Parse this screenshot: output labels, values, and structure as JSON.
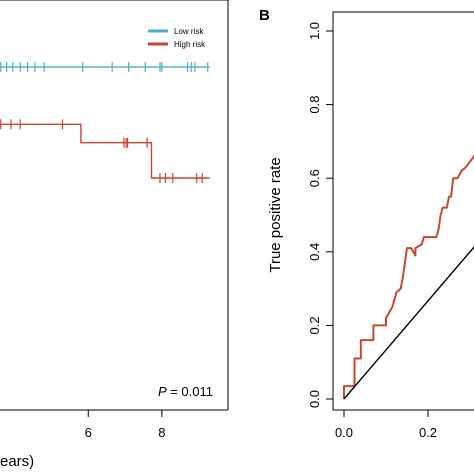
{
  "chart_data": [
    {
      "type": "line",
      "panel_label": "",
      "xlabel": "ears)",
      "ylabel": "",
      "x_ticks": [
        "6",
        "8"
      ],
      "x_tick_values": [
        6,
        8
      ],
      "xlim": [
        3.6,
        9.8
      ],
      "ylim": [
        0,
        1.0
      ],
      "grid": false,
      "legend": {
        "position": "top-right",
        "entries": [
          "Low risk",
          "High risk"
        ]
      },
      "annotation": {
        "prefix": "P",
        "text": " = 0.011"
      },
      "colors": {
        "low": "#4bb0c7",
        "high": "#c8452e"
      },
      "series": [
        {
          "name": "Low risk",
          "steps": [
            [
              3.6,
              0.857
            ],
            [
              9.3,
              0.857
            ]
          ],
          "censor_x": [
            3.62,
            3.78,
            3.95,
            4.15,
            4.35,
            4.55,
            4.8,
            5.85,
            6.65,
            7.1,
            7.55,
            7.95,
            8.0,
            8.7,
            8.8,
            8.9,
            9.25
          ]
        },
        {
          "name": "High risk",
          "steps": [
            [
              3.6,
              0.711
            ],
            [
              5.8,
              0.711
            ],
            [
              5.8,
              0.664
            ],
            [
              7.72,
              0.664
            ],
            [
              7.72,
              0.574
            ],
            [
              9.3,
              0.574
            ]
          ],
          "censor_x": [
            3.62,
            3.9,
            4.15,
            5.3,
            6.97,
            7.03,
            7.07,
            7.6,
            7.95,
            8.1,
            8.3,
            8.95,
            9.1
          ]
        }
      ]
    },
    {
      "type": "line",
      "panel_label": "B",
      "xlabel": "",
      "ylabel": "True positive rate",
      "x_ticks": [
        "0.0",
        "0.2"
      ],
      "x_tick_values": [
        0.0,
        0.2
      ],
      "y_ticks": [
        "0.0",
        "0.2",
        "0.4",
        "0.6",
        "0.8",
        "1.0"
      ],
      "y_tick_values": [
        0.0,
        0.2,
        0.4,
        0.6,
        0.8,
        1.0
      ],
      "xlim": [
        0.0,
        0.33
      ],
      "ylim": [
        0.0,
        1.0
      ],
      "grid": false,
      "colors": {
        "roc": "#c8452e",
        "diagonal": "#000000"
      },
      "series": [
        {
          "name": "",
          "x": [
            0.0,
            0.0,
            0.025,
            0.025,
            0.04,
            0.04,
            0.06,
            0.06,
            0.07,
            0.07,
            0.1,
            0.1,
            0.115,
            0.125,
            0.135,
            0.14,
            0.15,
            0.16,
            0.17,
            0.17,
            0.185,
            0.19,
            0.2,
            0.22,
            0.225,
            0.23,
            0.235,
            0.245,
            0.25,
            0.255,
            0.26,
            0.27,
            0.28,
            0.29,
            0.31,
            0.32,
            0.33
          ],
          "y": [
            0.0,
            0.035,
            0.035,
            0.11,
            0.11,
            0.16,
            0.16,
            0.16,
            0.16,
            0.2,
            0.2,
            0.22,
            0.25,
            0.29,
            0.3,
            0.33,
            0.41,
            0.41,
            0.39,
            0.41,
            0.42,
            0.44,
            0.44,
            0.44,
            0.46,
            0.5,
            0.52,
            0.52,
            0.55,
            0.55,
            0.6,
            0.6,
            0.62,
            0.63,
            0.66,
            0.68,
            0.68
          ]
        },
        {
          "name": "",
          "x": [
            0.0,
            0.33
          ],
          "y": [
            0.0,
            0.44
          ]
        }
      ]
    }
  ]
}
